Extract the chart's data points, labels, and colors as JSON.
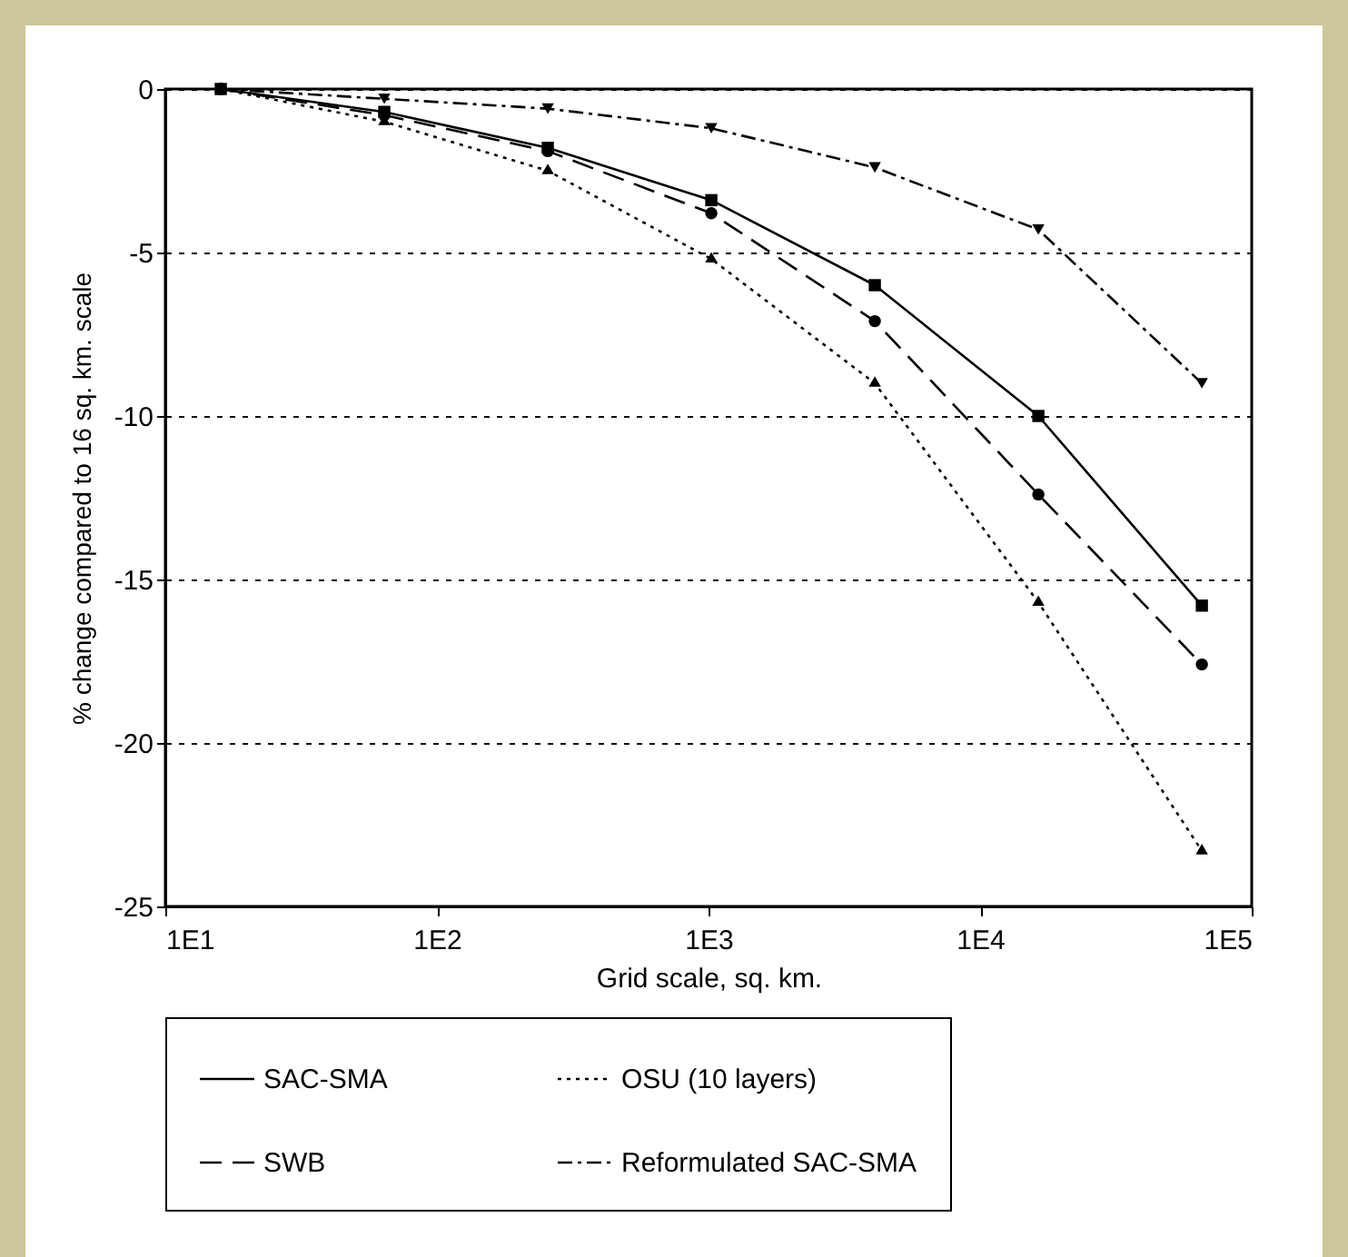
{
  "chart_data": {
    "type": "line",
    "xlabel": "Grid scale, sq. km.",
    "ylabel": "% change compared to 16 sq. km. scale",
    "log": "x",
    "x": [
      16,
      64,
      256,
      1024,
      4096,
      16384,
      65536
    ],
    "series": [
      {
        "name": "SAC-SMA",
        "color": "#000000",
        "line_style": "solid",
        "marker": "square",
        "values": [
          0,
          -0.7,
          -1.8,
          -3.4,
          -6.0,
          -10.0,
          -15.8
        ]
      },
      {
        "name": "SWB",
        "color": "#000000",
        "line_style": "dashed",
        "marker": "circle",
        "values": [
          0,
          -0.8,
          -1.9,
          -3.8,
          -7.1,
          -12.4,
          -17.6
        ]
      },
      {
        "name": "OSU (10 layers)",
        "color": "#000000",
        "line_style": "dotted",
        "marker": "triangle",
        "values": [
          0,
          -1.0,
          -2.5,
          -5.2,
          -9.0,
          -15.7,
          -23.3
        ]
      },
      {
        "name": "Reformulated SAC-SMA",
        "color": "#000000",
        "line_style": "dashdot",
        "marker": "triangle-down",
        "values": [
          0,
          -0.3,
          -0.6,
          -1.2,
          -2.4,
          -4.3,
          -9.0
        ]
      }
    ],
    "xlim": [
      10,
      100000
    ],
    "xticks": [
      {
        "value": 10,
        "label": "1E1"
      },
      {
        "value": 100,
        "label": "1E2"
      },
      {
        "value": 1000,
        "label": "1E3"
      },
      {
        "value": 10000,
        "label": "1E4"
      },
      {
        "value": 100000,
        "label": "1E5"
      }
    ],
    "ylim": [
      -25,
      0
    ],
    "yticks": [
      0,
      -5,
      -10,
      -15,
      -20,
      -25
    ],
    "grid": "y",
    "legend": "bottom"
  }
}
